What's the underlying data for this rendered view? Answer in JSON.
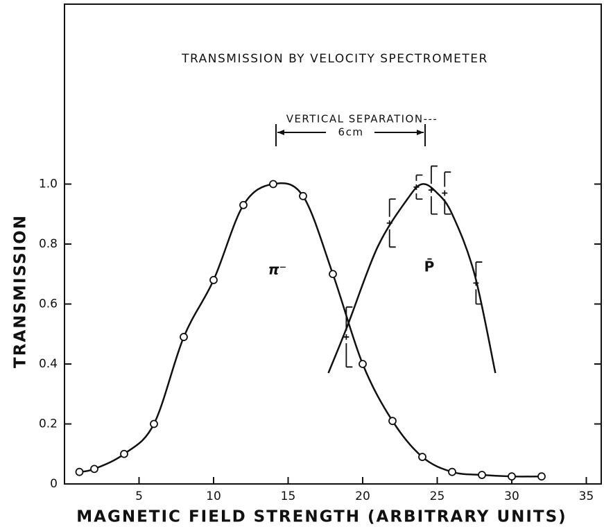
{
  "chart_data": {
    "type": "line",
    "title": "TRANSMISSION BY VELOCITY SPECTROMETER",
    "x_label": "MAGNETIC FIELD STRENGTH (ARBITRARY UNITS)",
    "y_label": "TRANSMISSION",
    "annotations": [
      "VERTICAL SEPARATION---",
      "6cm",
      "π⁻",
      "P̄"
    ],
    "xlim": [
      0,
      36
    ],
    "ylim": [
      0,
      1.6
    ],
    "xticks": [
      5,
      10,
      15,
      20,
      25,
      30,
      35
    ],
    "yticks": [
      0,
      0.2,
      0.4,
      0.6,
      0.8,
      {
        "value": 1,
        "label": "1.0"
      }
    ],
    "color": "#111111",
    "series": [
      {
        "marker": "circle",
        "curve": true,
        "x": [
          1,
          2,
          4,
          6,
          8,
          10,
          12,
          14,
          16,
          18,
          20,
          22,
          24,
          26,
          28,
          30,
          32
        ],
        "values": [
          0.04,
          0.05,
          0.1,
          0.2,
          0.49,
          0.68,
          0.93,
          1.0,
          0.96,
          0.7,
          0.4,
          0.21,
          0.09,
          0.04,
          0.03,
          0.025,
          0.025
        ]
      },
      {
        "marker": "plus",
        "curve": false,
        "x": [
          18.9,
          21.8,
          23.6,
          24.6,
          25.5,
          27.6
        ],
        "values": [
          0.49,
          0.87,
          0.99,
          0.98,
          0.97,
          0.67
        ],
        "errors": [
          0.1,
          0.08,
          0.04,
          0.08,
          0.07,
          0.07
        ]
      },
      {
        "marker": "none",
        "curve": true,
        "x": [
          17.7,
          19,
          21,
          23,
          24,
          25,
          26,
          27.5,
          28.9
        ],
        "values": [
          0.37,
          0.53,
          0.79,
          0.95,
          1.0,
          0.97,
          0.9,
          0.7,
          0.37
        ]
      }
    ]
  }
}
